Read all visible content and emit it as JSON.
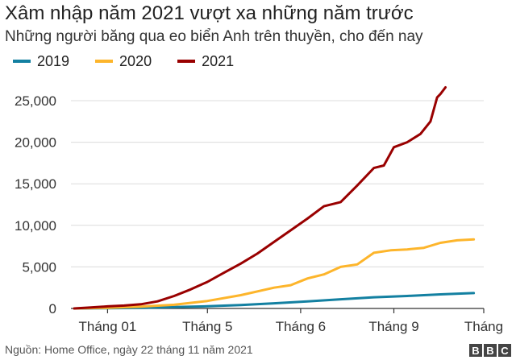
{
  "chart_data": {
    "type": "line",
    "title": "Xâm nhập năm 2021 vượt xa những năm trước",
    "subtitle": "Những người băng qua eo biển Anh trên thuyền, cho đến nay",
    "xlabel": "",
    "ylabel": "",
    "x_tick_labels": [
      "Tháng 01",
      "Tháng 5",
      "Tháng 6",
      "Tháng 9",
      "Tháng"
    ],
    "x_tick_months": [
      1,
      4,
      6.8,
      9.6,
      12.3
    ],
    "y_tick_labels": [
      "0",
      "5,000",
      "10,000",
      "15,000",
      "20,000",
      "25,000"
    ],
    "y_tick_values": [
      0,
      5000,
      10000,
      15000,
      20000,
      25000
    ],
    "xlim": [
      -0.1,
      12.3
    ],
    "ylim": [
      0,
      25000
    ],
    "grid": true,
    "legend_position": "top-left",
    "series": [
      {
        "name": "2019",
        "color": "#1380a1",
        "x": [
          0,
          1,
          2,
          3,
          4,
          5,
          6,
          7,
          8,
          9,
          10,
          11,
          12
        ],
        "y": [
          0,
          30,
          80,
          160,
          260,
          420,
          620,
          850,
          1100,
          1350,
          1500,
          1700,
          1850
        ]
      },
      {
        "name": "2020",
        "color": "#fdb52b",
        "x": [
          0,
          1,
          2,
          3,
          4,
          5,
          6,
          6.5,
          7,
          7.5,
          8,
          8.5,
          9,
          9.5,
          10,
          10.5,
          11,
          11.5,
          12
        ],
        "y": [
          0,
          80,
          220,
          450,
          900,
          1600,
          2500,
          2800,
          3600,
          4100,
          5000,
          5300,
          6700,
          7000,
          7100,
          7300,
          7900,
          8200,
          8300
        ]
      },
      {
        "name": "2021",
        "color": "#990000",
        "x": [
          0,
          0.5,
          1,
          1.5,
          2,
          2.5,
          3,
          3.5,
          4,
          4.5,
          5,
          5.5,
          6,
          6.5,
          7,
          7.5,
          8,
          8.5,
          9,
          9.3,
          9.6,
          10,
          10.4,
          10.7,
          10.9,
          11,
          11.15
        ],
        "y": [
          0,
          120,
          250,
          350,
          500,
          850,
          1500,
          2300,
          3200,
          4300,
          5400,
          6600,
          8000,
          9400,
          10800,
          12300,
          12800,
          14800,
          16900,
          17200,
          19400,
          20000,
          21000,
          22500,
          25400,
          25800,
          26600
        ]
      }
    ]
  },
  "source_text": "Nguồn: Home Office, ngày 22 tháng 11 năm 2021",
  "logo": [
    "B",
    "B",
    "C"
  ]
}
